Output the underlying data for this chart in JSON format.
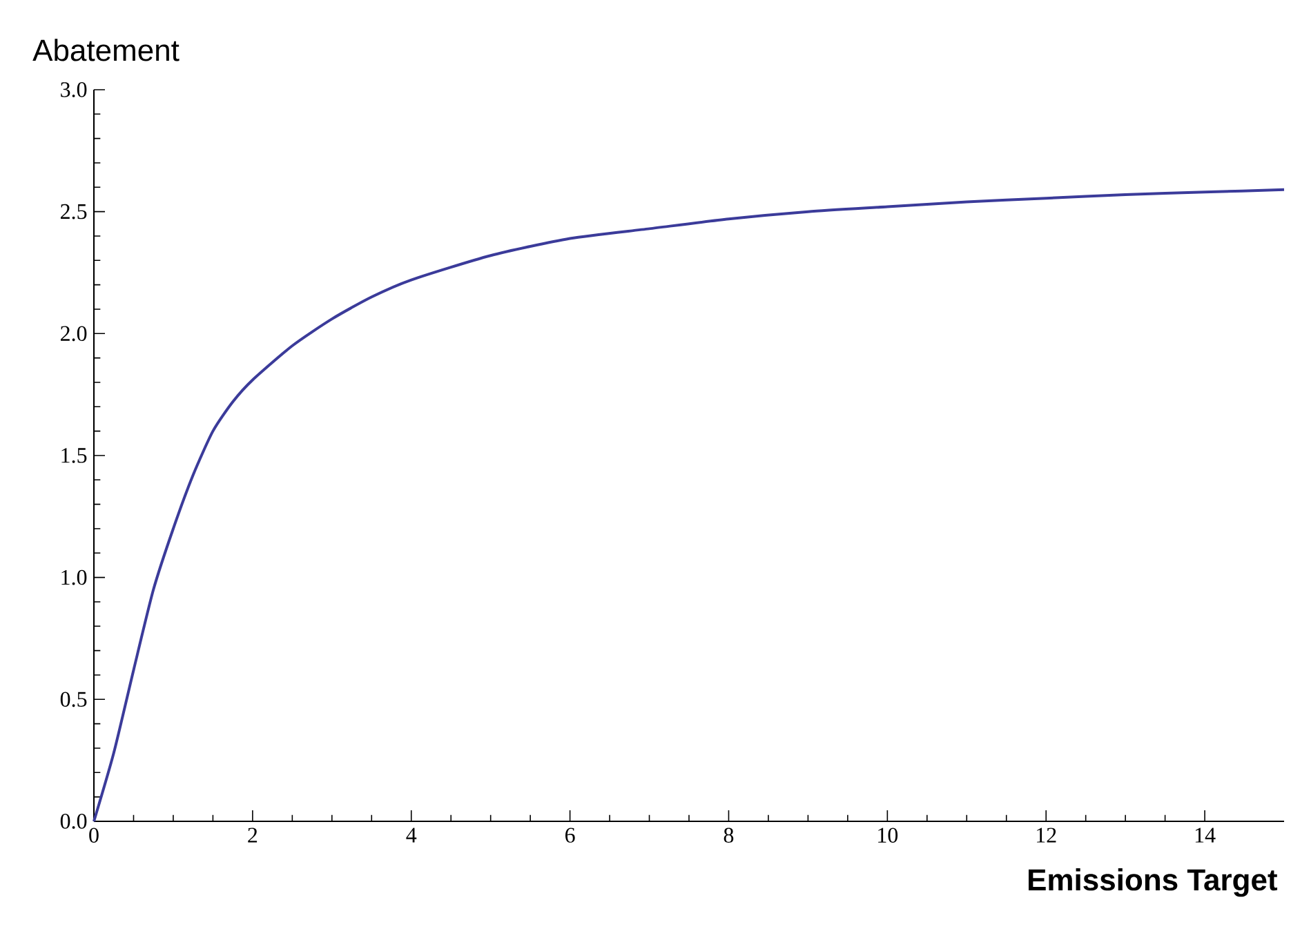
{
  "chart_data": {
    "type": "line",
    "xlabel": "Emissions Target",
    "ylabel": "Abatement",
    "xlim": [
      0,
      15
    ],
    "ylim": [
      0,
      3
    ],
    "xticks": [
      0,
      2,
      4,
      6,
      8,
      10,
      12,
      14
    ],
    "yticks": [
      {
        "value": 0,
        "label": "0.0"
      },
      {
        "value": 0.5,
        "label": "0.5"
      },
      {
        "value": 1,
        "label": "1.0"
      },
      {
        "value": 1.5,
        "label": "1.5"
      },
      {
        "value": 2,
        "label": "2.0"
      },
      {
        "value": 2.5,
        "label": "2.5"
      },
      {
        "value": 3,
        "label": "3.0"
      }
    ],
    "grid": false,
    "series": [
      {
        "color": "#3b3b9a",
        "x": [
          0,
          0.25,
          0.5,
          0.75,
          1,
          1.25,
          1.5,
          1.75,
          2,
          2.5,
          3,
          3.5,
          4,
          5,
          6,
          7,
          8,
          9,
          10,
          11,
          12,
          13,
          14,
          15
        ],
        "values": [
          0,
          0.28,
          0.62,
          0.95,
          1.2,
          1.42,
          1.6,
          1.72,
          1.81,
          1.95,
          2.06,
          2.15,
          2.22,
          2.32,
          2.39,
          2.43,
          2.47,
          2.5,
          2.52,
          2.54,
          2.555,
          2.57,
          2.58,
          2.59
        ]
      }
    ]
  }
}
